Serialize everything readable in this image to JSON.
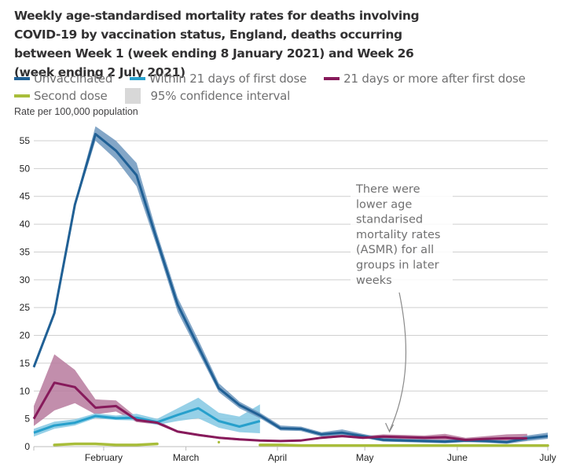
{
  "chart_data": {
    "type": "line",
    "title": "Weekly age-standardised mortality rates for deaths involving COVID-19 by vaccination status, England, deaths occurring between Week 1 (week ending 8 January 2021) and Week 26 (week ending 2 July 2021)",
    "ylabel": "Rate per 100,000 population",
    "xlabel": "",
    "ylim": [
      0,
      55
    ],
    "yticks": [
      "0",
      "5",
      "10",
      "15",
      "20",
      "25",
      "30",
      "35",
      "40",
      "45",
      "50",
      "55"
    ],
    "x_weeks": [
      1,
      26
    ],
    "month_ticks": [
      {
        "label": "February",
        "week": 4.4
      },
      {
        "label": "March",
        "week": 8.4
      },
      {
        "label": "April",
        "week": 12.85
      },
      {
        "label": "May",
        "week": 17.1
      },
      {
        "label": "June",
        "week": 21.6
      },
      {
        "label": "July",
        "week": 26
      }
    ],
    "grid": true,
    "legend_position": "top",
    "legend": [
      {
        "label": "Unvaccinated",
        "color": "#206095"
      },
      {
        "label": "Within 21 days of first dose",
        "color": "#27a0cc"
      },
      {
        "label": "21 days or more after first dose",
        "color": "#871a5b"
      },
      {
        "label": "Second dose",
        "color": "#a8bd3a"
      },
      {
        "label": "95% confidence interval",
        "color": "#d8d8d8"
      }
    ],
    "series": [
      {
        "name": "Unvaccinated",
        "color": "#206095",
        "ci_color": "#6d97bd",
        "weeks": [
          1,
          2,
          3,
          4,
          5,
          6,
          7,
          8,
          9,
          10,
          11,
          12,
          13,
          14,
          15,
          16,
          17,
          18,
          19,
          20,
          21,
          22,
          23,
          24,
          25,
          26
        ],
        "values": [
          14.3,
          24.0,
          43.5,
          56.2,
          53.2,
          48.8,
          37.0,
          25.5,
          18.0,
          10.5,
          7.5,
          5.6,
          3.3,
          3.2,
          2.2,
          2.5,
          1.9,
          1.2,
          1.1,
          1.0,
          0.9,
          1.1,
          1.0,
          0.8,
          1.5,
          1.9
        ],
        "ci_low": [
          14.0,
          23.6,
          43.0,
          55.0,
          51.6,
          46.8,
          35.8,
          24.2,
          17.0,
          9.8,
          6.9,
          5.1,
          2.9,
          2.8,
          1.8,
          2.1,
          1.6,
          0.9,
          0.8,
          0.7,
          0.6,
          0.8,
          0.7,
          0.5,
          1.0,
          1.4
        ],
        "ci_high": [
          14.6,
          24.4,
          44.0,
          57.6,
          55.0,
          51.0,
          38.3,
          26.8,
          19.2,
          11.4,
          8.1,
          6.1,
          3.8,
          3.6,
          2.6,
          3.1,
          2.3,
          1.6,
          1.4,
          1.3,
          1.2,
          1.4,
          1.3,
          1.1,
          2.0,
          2.5
        ]
      },
      {
        "name": "Within 21 days of first dose",
        "color": "#27a0cc",
        "ci_color": "#84c8e3",
        "weeks": [
          1,
          2,
          3,
          4,
          5,
          6,
          7,
          8,
          9,
          10,
          11,
          12
        ],
        "values": [
          2.5,
          3.8,
          4.3,
          5.5,
          5.1,
          5.2,
          4.4,
          5.7,
          6.9,
          4.6,
          3.6,
          4.6
        ],
        "ci_low": [
          1.8,
          3.2,
          3.8,
          5.1,
          4.8,
          4.7,
          3.9,
          4.6,
          5.1,
          3.4,
          2.6,
          2.4
        ],
        "ci_high": [
          3.2,
          4.5,
          4.9,
          6.0,
          5.6,
          5.9,
          5.0,
          6.9,
          8.8,
          6.1,
          5.4,
          7.6
        ]
      },
      {
        "name": "21 days or more after first dose",
        "color": "#871a5b",
        "ci_color": "#b77a9e",
        "weeks": [
          1,
          2,
          3,
          4,
          5,
          6,
          7,
          8,
          9,
          10,
          11,
          12,
          13,
          14,
          15,
          16,
          17,
          18,
          19,
          20,
          21,
          22,
          23,
          24,
          25
        ],
        "values": [
          5.0,
          11.5,
          10.7,
          7.0,
          7.3,
          4.8,
          4.3,
          2.7,
          2.1,
          1.6,
          1.3,
          1.1,
          1.0,
          1.1,
          1.6,
          1.9,
          1.6,
          1.8,
          1.7,
          1.6,
          1.7,
          1.2,
          1.4,
          1.5,
          1.5
        ],
        "ci_low": [
          3.7,
          6.5,
          7.8,
          5.8,
          6.3,
          4.4,
          4.0,
          2.5,
          1.9,
          1.4,
          1.1,
          1.0,
          0.9,
          1.0,
          1.4,
          1.7,
          1.4,
          1.4,
          1.3,
          1.2,
          1.2,
          0.8,
          0.9,
          1.0,
          1.0
        ],
        "ci_high": [
          7.3,
          16.6,
          13.8,
          8.5,
          8.3,
          5.3,
          4.7,
          2.9,
          2.3,
          1.8,
          1.5,
          1.2,
          1.1,
          1.2,
          1.8,
          2.1,
          1.9,
          2.2,
          2.1,
          2.0,
          2.3,
          1.6,
          1.9,
          2.2,
          2.3
        ]
      },
      {
        "name": "Second dose",
        "color": "#a8bd3a",
        "segments": [
          {
            "weeks": [
              2,
              3,
              4,
              5,
              6,
              7
            ],
            "values": [
              0.3,
              0.5,
              0.5,
              0.3,
              0.3,
              0.5
            ]
          },
          {
            "weeks": [
              10
            ],
            "values": [
              0.8
            ]
          },
          {
            "weeks": [
              12,
              13,
              14,
              15,
              16,
              17,
              18,
              19,
              20,
              21,
              22,
              23,
              24,
              25,
              26
            ],
            "values": [
              0.3,
              0.3,
              0.2,
              0.2,
              0.2,
              0.2,
              0.2,
              0.2,
              0.2,
              0.2,
              0.2,
              0.2,
              0.2,
              0.2,
              0.2
            ]
          }
        ]
      }
    ],
    "annotation": {
      "text_lines": [
        "There were",
        "lower age",
        "standarised",
        "mortality rates",
        "(ASMR) for all",
        "groups in later",
        "weeks"
      ],
      "points_to_week": 18.3
    }
  }
}
